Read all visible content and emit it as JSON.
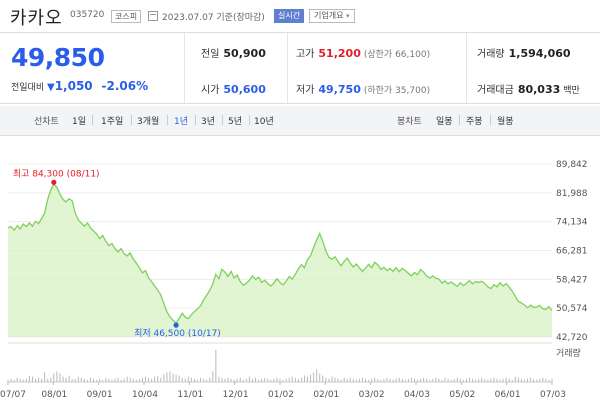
{
  "header": {
    "name": "카카오",
    "code": "035720",
    "market_badge": "코스피",
    "date_text": "2023.07.07  기준(장마감)",
    "realtime_label": "실시간",
    "corp_overview_label": "기업개요"
  },
  "price": {
    "current": "49,850",
    "change_label": "전일대비",
    "change_arrow": "▼",
    "change_value": "1,050",
    "change_pct": "-2.06%"
  },
  "stats": {
    "prev_label": "전일",
    "prev_value": "50,900",
    "high_label": "고가",
    "high_value": "51,200",
    "upper_limit": "(상한가 66,100)",
    "volume_label": "거래량",
    "volume_value": "1,594,060",
    "open_label": "시가",
    "open_value": "50,600",
    "low_label": "저가",
    "low_value": "49,750",
    "lower_limit": "(하한가 35,700)",
    "amount_label": "거래대금",
    "amount_value": "80,033",
    "amount_unit": "백만"
  },
  "tabs": {
    "line_label": "선차트",
    "periods": [
      "1일",
      "1주일",
      "3개월",
      "1년",
      "3년",
      "5년",
      "10년"
    ],
    "selected_period": "1년",
    "candle_label": "봉차트",
    "candle_periods": [
      "일봉",
      "주봉",
      "월봉"
    ]
  },
  "colors": {
    "accent": "#2b5ee8",
    "up": "#e0202a",
    "line": "#7fd05a",
    "area": "#d9f2c8"
  },
  "chart_data": {
    "type": "area",
    "x_tick_labels": [
      "07/07",
      "08/01",
      "09/01",
      "10/04",
      "11/01",
      "12/01",
      "01/02",
      "02/01",
      "03/02",
      "04/03",
      "05/02",
      "06/01",
      "07/03"
    ],
    "y_tick_labels": [
      "89,842",
      "81,988",
      "74,134",
      "66,281",
      "58,427",
      "50,574",
      "42,720"
    ],
    "ylim": [
      42720,
      89842
    ],
    "volume_label": "거래량",
    "max_annotation": "최고 84,300 (08/11)",
    "min_annotation": "최저 46,500 (10/17)",
    "max_point": {
      "date": "2022-08-11",
      "value": 84300
    },
    "min_point": {
      "date": "2022-10-17",
      "value": 46500
    },
    "series": [
      {
        "values": [
          72500,
          72800,
          71800,
          73000,
          72200,
          73500,
          72800,
          73800,
          72900,
          74200,
          73600,
          75000,
          76500,
          80200,
          82800,
          84300,
          83500,
          81600,
          80200,
          79500,
          80400,
          79800,
          76500,
          74600,
          73800,
          72900,
          73800,
          72400,
          71600,
          70800,
          69500,
          70400,
          68800,
          67600,
          68200,
          66800,
          65900,
          66800,
          65400,
          64800,
          65600,
          63900,
          62800,
          61600,
          60200,
          60800,
          58800,
          57800,
          56600,
          55500,
          54200,
          51800,
          49600,
          48200,
          47300,
          46500,
          47800,
          49200,
          48100,
          47700,
          48800,
          49600,
          50400,
          51200,
          52800,
          54100,
          55400,
          57200,
          59800,
          58600,
          61200,
          60400,
          59200,
          60600,
          58800,
          59600,
          57800,
          56800,
          57400,
          58200,
          59400,
          58400,
          59000,
          57600,
          58200,
          57300,
          56600,
          57400,
          58600,
          57600,
          56900,
          57900,
          59200,
          58500,
          59800,
          61300,
          62400,
          61600,
          63800,
          64900,
          67100,
          69200,
          70900,
          68800,
          66200,
          64400,
          63900,
          64600,
          63200,
          62100,
          63300,
          64200,
          62800,
          61800,
          62600,
          61500,
          60600,
          61500,
          62500,
          61600,
          63100,
          62400,
          61100,
          61700,
          60800,
          61400,
          60600,
          61600,
          60500,
          61400,
          60800,
          60100,
          59400,
          60300,
          59700,
          61100,
          60400,
          59300,
          58800,
          59400,
          58700,
          58500,
          57400,
          58000,
          57200,
          57700,
          57100,
          56500,
          57500,
          56700,
          57300,
          58100,
          57200,
          57800,
          57600,
          57900,
          57300,
          56400,
          55900,
          57000,
          56400,
          57500,
          56600,
          57300,
          56300,
          55200,
          53800,
          52400,
          52000,
          51400,
          50700,
          51400,
          50800,
          50900,
          51300,
          50400,
          50200,
          51000,
          49850
        ]
      }
    ],
    "volume_bars": [
      2,
      3,
      2,
      4,
      3,
      2,
      3,
      6,
      5,
      3,
      4,
      3,
      9,
      3,
      4,
      8,
      10,
      8,
      5,
      4,
      6,
      3,
      3,
      5,
      4,
      3,
      2,
      4,
      3,
      2,
      3,
      2,
      4,
      3,
      2,
      3,
      4,
      2,
      3,
      5,
      4,
      3,
      2,
      3,
      4,
      5,
      4,
      3,
      5,
      6,
      4,
      7,
      9,
      10,
      8,
      7,
      6,
      4,
      3,
      5,
      4,
      3,
      2,
      4,
      3,
      2,
      4,
      10,
      30,
      5,
      4,
      3,
      4,
      3,
      2,
      3,
      4,
      2,
      3,
      5,
      3,
      4,
      2,
      3,
      4,
      3,
      2,
      3,
      4,
      3,
      2,
      3,
      4,
      5,
      4,
      3,
      4,
      6,
      5,
      7,
      9,
      12,
      8,
      6,
      4,
      3,
      5,
      4,
      3,
      2,
      4,
      3,
      4,
      3,
      2,
      3,
      4,
      3,
      2,
      3,
      4,
      3,
      2,
      3,
      4,
      3,
      2,
      3,
      4,
      3,
      2,
      3,
      4,
      3,
      2,
      3,
      4,
      3,
      2,
      3,
      4,
      3,
      2,
      4,
      3,
      2,
      3,
      4,
      3,
      2,
      3,
      4,
      3,
      2,
      3,
      4,
      3,
      2,
      3,
      4,
      3,
      2,
      3,
      4,
      3,
      2,
      5,
      4,
      3,
      2,
      3,
      4,
      3,
      2,
      3,
      4,
      3,
      2,
      3
    ]
  }
}
